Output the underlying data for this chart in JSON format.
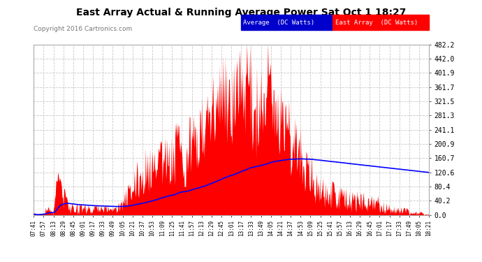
{
  "title": "East Array Actual & Running Average Power Sat Oct 1 18:27",
  "copyright": "Copyright 2016 Cartronics.com",
  "background_color": "#ffffff",
  "plot_bg_color": "#ffffff",
  "grid_color": "#c8c8c8",
  "area_color": "#ff0000",
  "line_color": "#0000ff",
  "ymax": 482.2,
  "yticks": [
    0.0,
    40.2,
    80.4,
    120.6,
    160.7,
    200.9,
    241.1,
    281.3,
    321.5,
    361.7,
    401.9,
    442.0,
    482.2
  ],
  "legend_avg_label": "Average  (DC Watts)",
  "legend_east_label": "East Array  (DC Watts)",
  "xtick_labels": [
    "07:41",
    "07:57",
    "08:13",
    "08:29",
    "08:45",
    "09:01",
    "09:17",
    "09:33",
    "09:49",
    "10:05",
    "10:21",
    "10:37",
    "10:53",
    "11:09",
    "11:25",
    "11:41",
    "11:57",
    "12:13",
    "12:29",
    "12:45",
    "13:01",
    "13:17",
    "13:33",
    "13:49",
    "14:05",
    "14:21",
    "14:37",
    "14:53",
    "15:09",
    "15:25",
    "15:41",
    "15:57",
    "16:13",
    "16:29",
    "16:45",
    "17:01",
    "17:17",
    "17:33",
    "17:49",
    "18:05",
    "18:21"
  ]
}
